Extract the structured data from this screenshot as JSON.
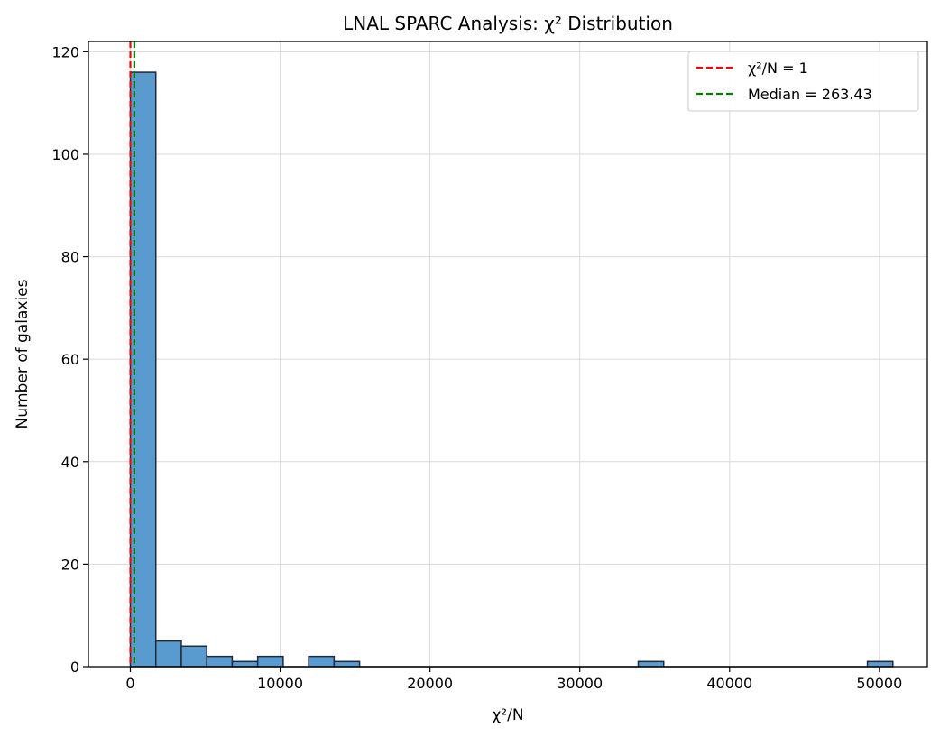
{
  "chart_data": {
    "type": "bar",
    "title": "LNAL SPARC Analysis: χ² Distribution",
    "xlabel": "χ²/N",
    "ylabel": "Number of galaxies",
    "xlim": [
      -2800,
      53200
    ],
    "ylim": [
      0,
      122
    ],
    "x_ticks": [
      0,
      10000,
      20000,
      30000,
      40000,
      50000
    ],
    "x_tick_labels": [
      "0",
      "10000",
      "20000",
      "30000",
      "40000",
      "50000"
    ],
    "y_ticks": [
      0,
      20,
      40,
      60,
      80,
      100,
      120
    ],
    "y_tick_labels": [
      "0",
      "20",
      "40",
      "60",
      "80",
      "100",
      "120"
    ],
    "grid": true,
    "bar_color": "#5a9bcf",
    "bar_edge_color": "#1f2a36",
    "bins": [
      {
        "start": 0,
        "end": 1700,
        "count": 116
      },
      {
        "start": 1700,
        "end": 3400,
        "count": 5
      },
      {
        "start": 3400,
        "end": 5100,
        "count": 4
      },
      {
        "start": 5100,
        "end": 6800,
        "count": 2
      },
      {
        "start": 6800,
        "end": 8500,
        "count": 1
      },
      {
        "start": 8500,
        "end": 10200,
        "count": 2
      },
      {
        "start": 10200,
        "end": 11900,
        "count": 0
      },
      {
        "start": 11900,
        "end": 13600,
        "count": 2
      },
      {
        "start": 13600,
        "end": 15300,
        "count": 1
      },
      {
        "start": 33900,
        "end": 35600,
        "count": 1
      },
      {
        "start": 49200,
        "end": 50900,
        "count": 1
      }
    ],
    "baseline_segments": [
      [
        15300,
        33900
      ],
      [
        35600,
        49200
      ]
    ],
    "reference_lines": [
      {
        "name": "χ²/N = 1",
        "x": 1,
        "color": "#ff0000"
      },
      {
        "name": "Median = 263.43",
        "x": 263.43,
        "color": "#008000"
      }
    ],
    "legend_position": "upper right"
  }
}
